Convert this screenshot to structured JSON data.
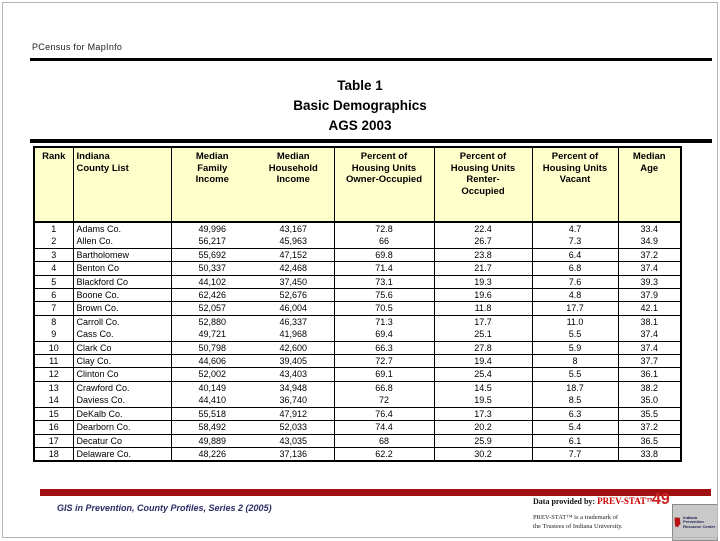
{
  "slide": {
    "top_label": "PCensus for MapInfo",
    "title_lines": [
      "Table 1",
      "Basic Demographics",
      "AGS 2003"
    ],
    "footer_left": "GIS in Prevention, County Profiles, Series 2 (2005)",
    "page_number": "49",
    "data_provided_prefix": "Data provided by:",
    "data_provided_brand": "PREV-STAT™",
    "trademark_line1": "PREV-STAT™ is a trademark of",
    "trademark_line2": "the Trustees of Indiana University.",
    "logo_text": "Indiana Prevention Resource Center",
    "colors": {
      "header_bg": "#FFFFCC",
      "bar": "#A01010",
      "brand_red": "#CC0000",
      "footer_navy": "#2B2B66"
    }
  },
  "table": {
    "headers": [
      "Rank",
      "Indiana\nCounty List",
      "Median\nFamily\nIncome",
      "Median\nHousehold\nIncome",
      "Percent of\nHousing Units\nOwner-Occupied",
      "Percent of\nHousing Units\nRenter-\nOccupied",
      "Percent of\nHousing Units\nVacant",
      "Median\nAge"
    ],
    "rows": [
      {
        "rank": "1",
        "county": "Adams Co.",
        "family": "49,996",
        "household": "43,167",
        "owner": "72.8",
        "renter": "22.4",
        "vacant": "4.7",
        "age": "33.4",
        "merged_with_next": true
      },
      {
        "rank": "2",
        "county": "Allen Co.",
        "family": "56,217",
        "household": "45,963",
        "owner": "66",
        "renter": "26.7",
        "vacant": "7.3",
        "age": "34.9",
        "merged_with_next": false
      },
      {
        "rank": "3",
        "county": "Bartholomew",
        "family": "55,692",
        "household": "47,152",
        "owner": "69.8",
        "renter": "23.8",
        "vacant": "6.4",
        "age": "37.2",
        "merged_with_next": false
      },
      {
        "rank": "4",
        "county": "Benton Co",
        "family": "50,337",
        "household": "42,468",
        "owner": "71.4",
        "renter": "21.7",
        "vacant": "6.8",
        "age": "37.4",
        "merged_with_next": false
      },
      {
        "rank": "5",
        "county": "Blackford Co",
        "family": "44,102",
        "household": "37,450",
        "owner": "73.1",
        "renter": "19.3",
        "vacant": "7.6",
        "age": "39.3",
        "merged_with_next": false
      },
      {
        "rank": "6",
        "county": "Boone Co.",
        "family": "62,426",
        "household": "52,676",
        "owner": "75.6",
        "renter": "19.6",
        "vacant": "4.8",
        "age": "37.9",
        "merged_with_next": false
      },
      {
        "rank": "7",
        "county": "Brown Co.",
        "family": "52,057",
        "household": "46,004",
        "owner": "70.5",
        "renter": "11.8",
        "vacant": "17.7",
        "age": "42.1",
        "merged_with_next": false
      },
      {
        "rank": "8",
        "county": "Carroll Co.",
        "family": "52,880",
        "household": "46,337",
        "owner": "71.3",
        "renter": "17.7",
        "vacant": "11.0",
        "age": "38.1",
        "merged_with_next": true
      },
      {
        "rank": "9",
        "county": "Cass Co.",
        "family": "49,721",
        "household": "41,968",
        "owner": "69.4",
        "renter": "25.1",
        "vacant": "5.5",
        "age": "37.4",
        "merged_with_next": false
      },
      {
        "rank": "10",
        "county": "Clark Co",
        "family": "50,798",
        "household": "42,600",
        "owner": "66.3",
        "renter": "27.8",
        "vacant": "5.9",
        "age": "37.4",
        "merged_with_next": false
      },
      {
        "rank": "11",
        "county": "Clay Co.",
        "family": "44,606",
        "household": "39,405",
        "owner": "72.7",
        "renter": "19.4",
        "vacant": "8",
        "age": "37.7",
        "merged_with_next": false
      },
      {
        "rank": "12",
        "county": "Clinton Co",
        "family": "52,002",
        "household": "43,403",
        "owner": "69.1",
        "renter": "25.4",
        "vacant": "5.5",
        "age": "36.1",
        "merged_with_next": false
      },
      {
        "rank": "13",
        "county": "Crawford Co.",
        "family": "40,149",
        "household": "34,948",
        "owner": "66.8",
        "renter": "14.5",
        "vacant": "18.7",
        "age": "38.2",
        "merged_with_next": true
      },
      {
        "rank": "14",
        "county": "Daviess Co.",
        "family": "44,410",
        "household": "36,740",
        "owner": "72",
        "renter": "19.5",
        "vacant": "8.5",
        "age": "35.0",
        "merged_with_next": false
      },
      {
        "rank": "15",
        "county": "DeKalb Co.",
        "family": "55,518",
        "household": "47,912",
        "owner": "76.4",
        "renter": "17.3",
        "vacant": "6.3",
        "age": "35.5",
        "merged_with_next": false
      },
      {
        "rank": "16",
        "county": "Dearborn Co.",
        "family": "58,492",
        "household": "52,033",
        "owner": "74.4",
        "renter": "20.2",
        "vacant": "5.4",
        "age": "37.2",
        "merged_with_next": false
      },
      {
        "rank": "17",
        "county": "Decatur Co",
        "family": "49,889",
        "household": "43,035",
        "owner": "68",
        "renter": "25.9",
        "vacant": "6.1",
        "age": "36.5",
        "merged_with_next": false
      },
      {
        "rank": "18",
        "county": "Delaware Co.",
        "family": "48,226",
        "household": "37,136",
        "owner": "62.2",
        "renter": "30.2",
        "vacant": "7.7",
        "age": "33.8",
        "merged_with_next": false
      }
    ]
  }
}
